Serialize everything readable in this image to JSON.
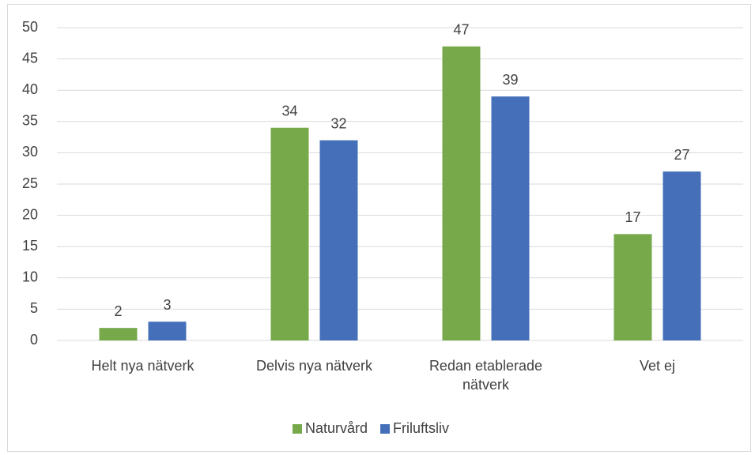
{
  "chart_data": {
    "type": "bar",
    "categories": [
      "Helt nya nätverk",
      "Delvis nya nätverk",
      "Redan etablerade nätverk",
      "Vet ej"
    ],
    "series": [
      {
        "name": "Naturvård",
        "color": "#77a94b",
        "values": [
          2,
          34,
          47,
          17
        ]
      },
      {
        "name": "Friluftsliv",
        "color": "#4570b9",
        "values": [
          3,
          32,
          39,
          27
        ]
      }
    ],
    "ylim": [
      0,
      50
    ],
    "yticks": [
      0,
      5,
      10,
      15,
      20,
      25,
      30,
      35,
      40,
      45,
      50
    ],
    "grid": true,
    "legend": "bottom"
  }
}
